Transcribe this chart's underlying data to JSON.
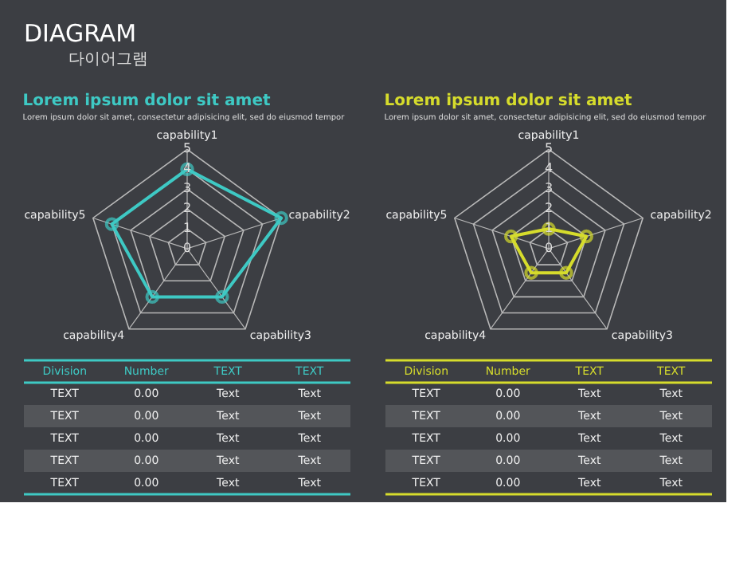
{
  "chart_data": [
    {
      "type": "other",
      "title": "DIAGRAM",
      "subtitle": "다이어그램"
    },
    {
      "type": "radar",
      "title": "Lorem ipsum dolor sit amet",
      "subtitle": "Lorem ipsum dolor sit amet, consectetur adipisicing elit, sed do eiusmod tempor",
      "categories": [
        "capability1",
        "capability2",
        "capability3",
        "capability4",
        "capability5"
      ],
      "series": [
        {
          "color": "#3ec9c4",
          "values": [
            4,
            5,
            3,
            3,
            4
          ]
        }
      ],
      "ylim": [
        0,
        5
      ],
      "yticks": [
        0,
        1,
        2,
        3,
        4,
        5
      ],
      "marker": "circle",
      "annotations": [
        "Division",
        "Number",
        "TEXT",
        "TEXT",
        "TEXT",
        "0.00",
        "Text",
        "Text",
        "TEXT",
        "0.00",
        "Text",
        "Text",
        "TEXT",
        "0.00",
        "Text",
        "Text",
        "TEXT",
        "0.00",
        "Text",
        "Text",
        "TEXT",
        "0.00",
        "Text",
        "Text"
      ]
    },
    {
      "type": "radar",
      "title": "Lorem ipsum dolor sit amet",
      "subtitle": "Lorem ipsum dolor sit amet, consectetur adipisicing elit, sed do eiusmod tempor",
      "categories": [
        "capability1",
        "capability2",
        "capability3",
        "capability4",
        "capability5"
      ],
      "series": [
        {
          "color": "#d6dc2c",
          "values": [
            1,
            2,
            1.5,
            1.5,
            2
          ]
        }
      ],
      "ylim": [
        0,
        5
      ],
      "yticks": [
        0,
        1,
        2,
        3,
        4,
        5
      ],
      "marker": "circle",
      "annotations": [
        "Division",
        "Number",
        "TEXT",
        "TEXT",
        "TEXT",
        "0.00",
        "Text",
        "Text",
        "TEXT",
        "0.00",
        "Text",
        "Text",
        "TEXT",
        "0.00",
        "Text",
        "Text",
        "TEXT",
        "0.00",
        "Text",
        "Text",
        "TEXT",
        "0.00",
        "Text",
        "Text"
      ]
    }
  ]
}
